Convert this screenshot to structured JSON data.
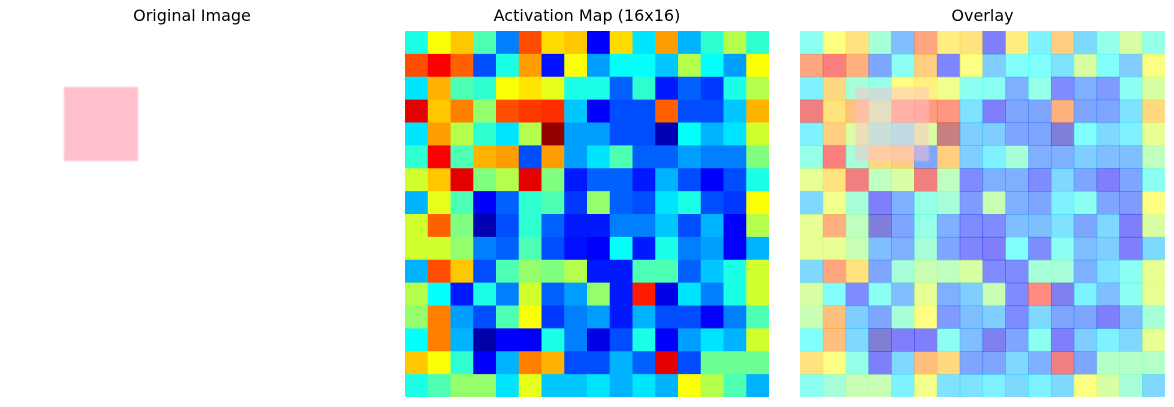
{
  "panels": {
    "original_title": "Original Image",
    "activation_title": "Activation Map (16x16)",
    "overlay_title": "Overlay"
  },
  "original_image": {
    "background": "#ffffff",
    "square_color": "#ffc0cb"
  },
  "chart_data": {
    "type": "heatmap",
    "title": "Activation Map (16x16)",
    "colormap": "jet",
    "vmin": 0,
    "vmax": 1,
    "grid": false,
    "axes": "off",
    "rows": 16,
    "cols": 16,
    "values": [
      [
        0.4,
        0.62,
        0.68,
        0.45,
        0.25,
        0.8,
        0.66,
        0.68,
        0.12,
        0.66,
        0.35,
        0.72,
        0.3,
        0.42,
        0.55,
        0.42
      ],
      [
        0.8,
        0.88,
        0.78,
        0.2,
        0.4,
        0.72,
        0.14,
        0.62,
        0.28,
        0.38,
        0.38,
        0.32,
        0.55,
        0.38,
        0.28,
        0.62
      ],
      [
        0.35,
        0.7,
        0.45,
        0.42,
        0.62,
        0.65,
        0.6,
        0.4,
        0.4,
        0.22,
        0.42,
        0.15,
        0.22,
        0.18,
        0.4,
        0.55
      ],
      [
        0.9,
        0.68,
        0.75,
        0.52,
        0.8,
        0.82,
        0.83,
        0.32,
        0.12,
        0.2,
        0.2,
        0.78,
        0.2,
        0.2,
        0.32,
        0.7
      ],
      [
        0.35,
        0.72,
        0.55,
        0.42,
        0.35,
        0.55,
        0.98,
        0.28,
        0.28,
        0.2,
        0.2,
        0.05,
        0.38,
        0.3,
        0.35,
        0.58
      ],
      [
        0.42,
        0.88,
        0.45,
        0.7,
        0.72,
        0.2,
        0.72,
        0.28,
        0.35,
        0.45,
        0.22,
        0.22,
        0.28,
        0.25,
        0.25,
        0.5
      ],
      [
        0.58,
        0.68,
        0.9,
        0.5,
        0.55,
        0.9,
        0.5,
        0.15,
        0.22,
        0.22,
        0.15,
        0.3,
        0.2,
        0.12,
        0.2,
        0.4
      ],
      [
        0.3,
        0.6,
        0.45,
        0.12,
        0.22,
        0.42,
        0.45,
        0.18,
        0.52,
        0.22,
        0.2,
        0.35,
        0.4,
        0.2,
        0.18,
        0.62
      ],
      [
        0.58,
        0.78,
        0.5,
        0.05,
        0.2,
        0.42,
        0.22,
        0.15,
        0.15,
        0.25,
        0.25,
        0.32,
        0.2,
        0.3,
        0.12,
        0.55
      ],
      [
        0.58,
        0.58,
        0.52,
        0.25,
        0.22,
        0.45,
        0.2,
        0.14,
        0.12,
        0.38,
        0.15,
        0.4,
        0.25,
        0.28,
        0.12,
        0.3
      ],
      [
        0.3,
        0.8,
        0.68,
        0.2,
        0.45,
        0.52,
        0.5,
        0.55,
        0.15,
        0.15,
        0.45,
        0.45,
        0.22,
        0.32,
        0.4,
        0.58
      ],
      [
        0.55,
        0.38,
        0.15,
        0.4,
        0.25,
        0.58,
        0.22,
        0.28,
        0.52,
        0.15,
        0.85,
        0.1,
        0.35,
        0.25,
        0.4,
        0.58
      ],
      [
        0.52,
        0.75,
        0.28,
        0.2,
        0.45,
        0.62,
        0.18,
        0.25,
        0.28,
        0.15,
        0.3,
        0.2,
        0.2,
        0.12,
        0.25,
        0.45
      ],
      [
        0.38,
        0.75,
        0.3,
        0.04,
        0.12,
        0.12,
        0.4,
        0.25,
        0.1,
        0.2,
        0.4,
        0.12,
        0.28,
        0.35,
        0.3,
        0.58
      ],
      [
        0.68,
        0.62,
        0.42,
        0.12,
        0.3,
        0.75,
        0.7,
        0.2,
        0.2,
        0.3,
        0.22,
        0.9,
        0.2,
        0.48,
        0.48,
        0.48
      ],
      [
        0.4,
        0.45,
        0.52,
        0.52,
        0.35,
        0.6,
        0.32,
        0.32,
        0.35,
        0.3,
        0.35,
        0.3,
        0.62,
        0.55,
        0.45,
        0.3
      ]
    ]
  },
  "overlay": {
    "heatmap_opacity": 0.5,
    "square_opacity": 0.5
  }
}
